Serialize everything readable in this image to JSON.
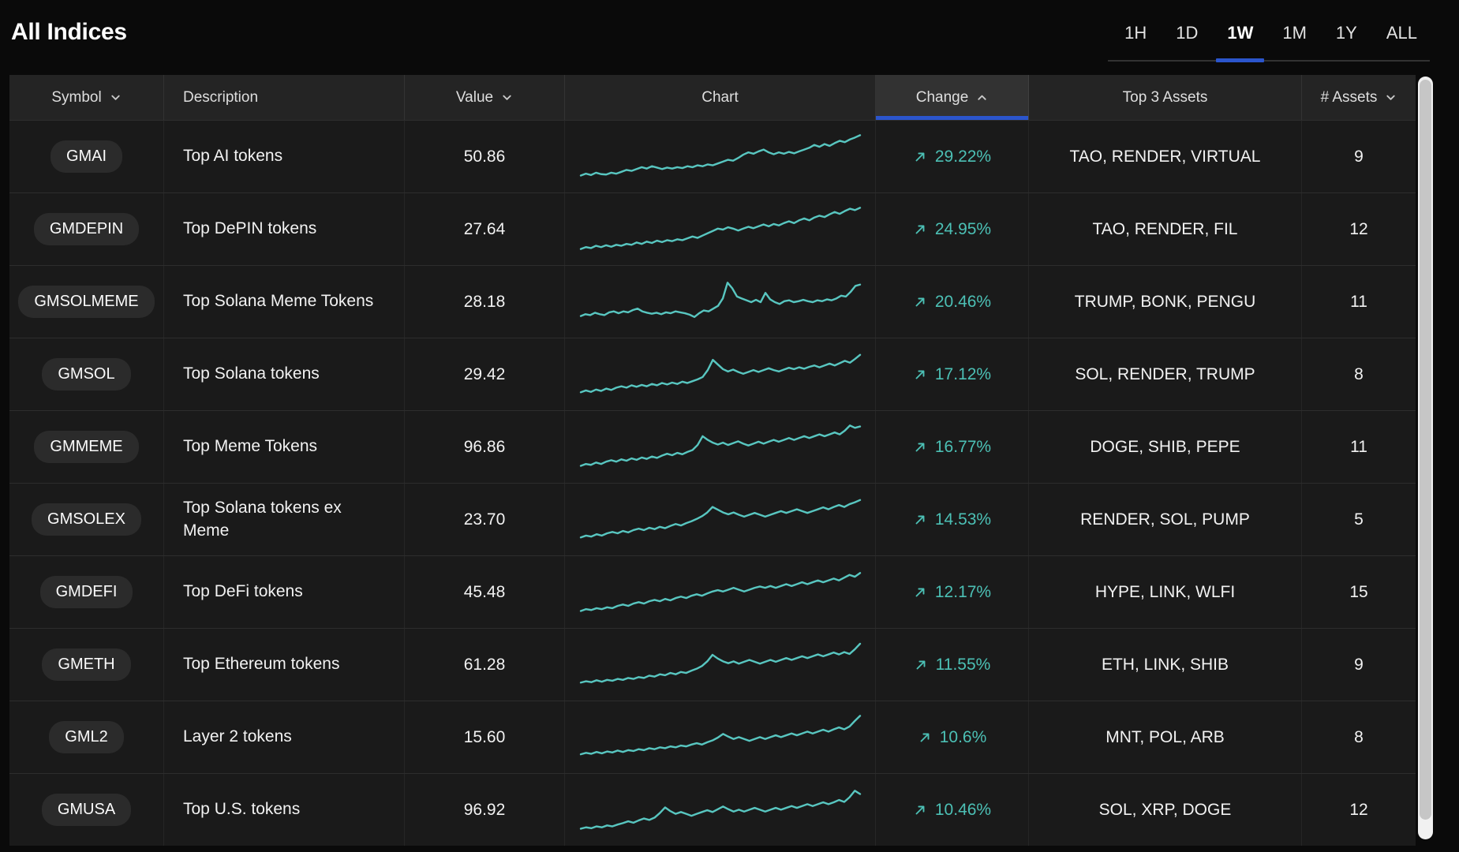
{
  "title": "All Indices",
  "colors": {
    "accent_blue": "#2b55cc",
    "sparkline_teal": "#58c6c0",
    "change_positive": "#4cc0b5",
    "row_background": "#1a1a1a",
    "header_background": "#242424"
  },
  "time_ranges": {
    "options": [
      "1H",
      "1D",
      "1W",
      "1M",
      "1Y",
      "ALL"
    ],
    "selected": "1W"
  },
  "table": {
    "columns": [
      {
        "label": "Symbol",
        "sort": "down"
      },
      {
        "label": "Description",
        "sort": "none"
      },
      {
        "label": "Value",
        "sort": "down"
      },
      {
        "label": "Chart",
        "sort": "none"
      },
      {
        "label": "Change",
        "sort": "up",
        "active": true
      },
      {
        "label": "Top 3 Assets",
        "sort": "none"
      },
      {
        "label": "# Assets",
        "sort": "down"
      }
    ],
    "rows": [
      {
        "symbol": "GMAI",
        "description": "Top AI tokens",
        "value": "50.86",
        "change": "29.22%",
        "top_assets": "TAO, RENDER, VIRTUAL",
        "num_assets": "9",
        "sparkline": [
          0.1,
          0.14,
          0.11,
          0.16,
          0.13,
          0.12,
          0.16,
          0.14,
          0.18,
          0.22,
          0.2,
          0.24,
          0.28,
          0.25,
          0.3,
          0.27,
          0.24,
          0.27,
          0.25,
          0.28,
          0.26,
          0.3,
          0.28,
          0.32,
          0.3,
          0.34,
          0.32,
          0.36,
          0.4,
          0.44,
          0.42,
          0.48,
          0.55,
          0.6,
          0.57,
          0.62,
          0.66,
          0.6,
          0.56,
          0.6,
          0.57,
          0.61,
          0.58,
          0.62,
          0.66,
          0.7,
          0.76,
          0.72,
          0.78,
          0.74,
          0.8,
          0.85,
          0.82,
          0.88,
          0.92,
          0.97
        ]
      },
      {
        "symbol": "GMDEPIN",
        "description": "Top DePIN tokens",
        "value": "27.64",
        "change": "24.95%",
        "top_assets": "TAO, RENDER, FIL",
        "num_assets": "12",
        "sparkline": [
          0.08,
          0.12,
          0.1,
          0.15,
          0.12,
          0.16,
          0.13,
          0.17,
          0.15,
          0.19,
          0.17,
          0.22,
          0.19,
          0.24,
          0.21,
          0.26,
          0.23,
          0.27,
          0.25,
          0.29,
          0.27,
          0.31,
          0.35,
          0.32,
          0.37,
          0.42,
          0.47,
          0.52,
          0.5,
          0.55,
          0.52,
          0.48,
          0.52,
          0.56,
          0.53,
          0.57,
          0.61,
          0.57,
          0.62,
          0.59,
          0.64,
          0.68,
          0.64,
          0.7,
          0.74,
          0.7,
          0.76,
          0.8,
          0.77,
          0.83,
          0.88,
          0.84,
          0.9,
          0.95,
          0.92,
          0.97
        ]
      },
      {
        "symbol": "GMSOLMEME",
        "description": "Top Solana Meme Tokens",
        "value": "28.18",
        "change": "20.46%",
        "top_assets": "TRUMP, BONK, PENGU",
        "num_assets": "11",
        "sparkline": [
          0.2,
          0.24,
          0.22,
          0.27,
          0.24,
          0.22,
          0.28,
          0.3,
          0.26,
          0.3,
          0.28,
          0.33,
          0.36,
          0.3,
          0.27,
          0.25,
          0.27,
          0.24,
          0.28,
          0.26,
          0.3,
          0.28,
          0.26,
          0.23,
          0.18,
          0.26,
          0.32,
          0.3,
          0.36,
          0.42,
          0.58,
          0.92,
          0.8,
          0.62,
          0.58,
          0.54,
          0.5,
          0.55,
          0.5,
          0.7,
          0.56,
          0.5,
          0.46,
          0.52,
          0.54,
          0.5,
          0.52,
          0.55,
          0.52,
          0.5,
          0.54,
          0.52,
          0.56,
          0.54,
          0.58,
          0.64,
          0.62,
          0.72,
          0.85,
          0.88
        ]
      },
      {
        "symbol": "GMSOL",
        "description": "Top Solana tokens",
        "value": "29.42",
        "change": "17.12%",
        "top_assets": "SOL, RENDER, TRUMP",
        "num_assets": "8",
        "sparkline": [
          0.12,
          0.16,
          0.13,
          0.18,
          0.15,
          0.2,
          0.17,
          0.22,
          0.25,
          0.22,
          0.27,
          0.24,
          0.28,
          0.25,
          0.3,
          0.27,
          0.32,
          0.29,
          0.33,
          0.3,
          0.35,
          0.32,
          0.36,
          0.4,
          0.45,
          0.6,
          0.82,
          0.72,
          0.62,
          0.57,
          0.61,
          0.56,
          0.52,
          0.56,
          0.6,
          0.56,
          0.6,
          0.64,
          0.6,
          0.57,
          0.61,
          0.65,
          0.62,
          0.66,
          0.63,
          0.67,
          0.7,
          0.66,
          0.7,
          0.74,
          0.7,
          0.75,
          0.8,
          0.76,
          0.84,
          0.93
        ]
      },
      {
        "symbol": "GMMEME",
        "description": "Top Meme Tokens",
        "value": "96.86",
        "change": "16.77%",
        "top_assets": "DOGE, SHIB, PEPE",
        "num_assets": "11",
        "sparkline": [
          0.1,
          0.14,
          0.12,
          0.17,
          0.14,
          0.19,
          0.22,
          0.19,
          0.24,
          0.21,
          0.26,
          0.23,
          0.28,
          0.25,
          0.3,
          0.27,
          0.32,
          0.36,
          0.33,
          0.38,
          0.35,
          0.4,
          0.44,
          0.55,
          0.74,
          0.66,
          0.6,
          0.56,
          0.6,
          0.55,
          0.59,
          0.63,
          0.58,
          0.54,
          0.58,
          0.62,
          0.58,
          0.62,
          0.66,
          0.62,
          0.66,
          0.7,
          0.66,
          0.7,
          0.74,
          0.7,
          0.74,
          0.78,
          0.74,
          0.78,
          0.82,
          0.78,
          0.86,
          0.97,
          0.92,
          0.95
        ]
      },
      {
        "symbol": "GMSOLEX",
        "description": "Top Solana tokens ex Meme",
        "value": "23.70",
        "change": "14.53%",
        "top_assets": "RENDER, SOL, PUMP",
        "num_assets": "5",
        "sparkline": [
          0.12,
          0.16,
          0.14,
          0.19,
          0.16,
          0.21,
          0.24,
          0.21,
          0.26,
          0.23,
          0.28,
          0.31,
          0.28,
          0.33,
          0.3,
          0.35,
          0.32,
          0.37,
          0.41,
          0.38,
          0.43,
          0.47,
          0.52,
          0.58,
          0.66,
          0.78,
          0.72,
          0.66,
          0.62,
          0.66,
          0.61,
          0.57,
          0.61,
          0.65,
          0.61,
          0.57,
          0.61,
          0.65,
          0.69,
          0.65,
          0.69,
          0.73,
          0.69,
          0.65,
          0.69,
          0.73,
          0.77,
          0.73,
          0.78,
          0.82,
          0.78,
          0.84,
          0.88,
          0.93
        ]
      },
      {
        "symbol": "GMDEFI",
        "description": "Top DeFi tokens",
        "value": "45.48",
        "change": "12.17%",
        "top_assets": "HYPE, LINK, WLFI",
        "num_assets": "15",
        "sparkline": [
          0.1,
          0.14,
          0.12,
          0.16,
          0.14,
          0.18,
          0.16,
          0.21,
          0.24,
          0.21,
          0.26,
          0.29,
          0.26,
          0.31,
          0.34,
          0.31,
          0.36,
          0.33,
          0.38,
          0.41,
          0.38,
          0.43,
          0.46,
          0.43,
          0.48,
          0.52,
          0.55,
          0.52,
          0.56,
          0.6,
          0.56,
          0.52,
          0.56,
          0.6,
          0.63,
          0.6,
          0.64,
          0.6,
          0.64,
          0.68,
          0.64,
          0.68,
          0.72,
          0.68,
          0.72,
          0.76,
          0.72,
          0.76,
          0.8,
          0.76,
          0.82,
          0.88,
          0.84,
          0.92
        ]
      },
      {
        "symbol": "GMETH",
        "description": "Top Ethereum tokens",
        "value": "61.28",
        "change": "11.55%",
        "top_assets": "ETH, LINK, SHIB",
        "num_assets": "9",
        "sparkline": [
          0.12,
          0.15,
          0.13,
          0.17,
          0.14,
          0.18,
          0.16,
          0.2,
          0.18,
          0.22,
          0.2,
          0.24,
          0.22,
          0.27,
          0.25,
          0.3,
          0.28,
          0.33,
          0.3,
          0.35,
          0.33,
          0.38,
          0.42,
          0.48,
          0.58,
          0.72,
          0.64,
          0.58,
          0.54,
          0.58,
          0.53,
          0.57,
          0.61,
          0.57,
          0.53,
          0.57,
          0.61,
          0.57,
          0.61,
          0.65,
          0.61,
          0.65,
          0.69,
          0.65,
          0.69,
          0.73,
          0.69,
          0.73,
          0.77,
          0.73,
          0.78,
          0.74,
          0.84,
          0.96
        ]
      },
      {
        "symbol": "GML2",
        "description": "Layer 2 tokens",
        "value": "15.60",
        "change": "10.6%",
        "top_assets": "MNT, POL, ARB",
        "num_assets": "8",
        "sparkline": [
          0.14,
          0.17,
          0.15,
          0.19,
          0.16,
          0.2,
          0.18,
          0.22,
          0.19,
          0.23,
          0.21,
          0.25,
          0.23,
          0.27,
          0.25,
          0.29,
          0.27,
          0.31,
          0.29,
          0.33,
          0.31,
          0.35,
          0.38,
          0.35,
          0.4,
          0.44,
          0.5,
          0.58,
          0.52,
          0.47,
          0.51,
          0.47,
          0.43,
          0.47,
          0.51,
          0.47,
          0.51,
          0.55,
          0.51,
          0.55,
          0.59,
          0.55,
          0.59,
          0.63,
          0.59,
          0.63,
          0.67,
          0.63,
          0.68,
          0.72,
          0.68,
          0.74,
          0.86,
          0.97
        ]
      },
      {
        "symbol": "GMUSA",
        "description": "Top U.S. tokens",
        "value": "96.92",
        "change": "10.46%",
        "top_assets": "SOL, XRP, DOGE",
        "num_assets": "12",
        "sparkline": [
          0.1,
          0.13,
          0.11,
          0.15,
          0.13,
          0.17,
          0.15,
          0.19,
          0.22,
          0.26,
          0.23,
          0.28,
          0.32,
          0.29,
          0.34,
          0.44,
          0.56,
          0.48,
          0.42,
          0.46,
          0.42,
          0.38,
          0.42,
          0.46,
          0.5,
          0.46,
          0.52,
          0.58,
          0.52,
          0.47,
          0.51,
          0.47,
          0.51,
          0.55,
          0.51,
          0.47,
          0.51,
          0.55,
          0.51,
          0.55,
          0.59,
          0.55,
          0.59,
          0.63,
          0.59,
          0.63,
          0.67,
          0.63,
          0.67,
          0.72,
          0.68,
          0.78,
          0.92,
          0.85
        ]
      }
    ]
  }
}
